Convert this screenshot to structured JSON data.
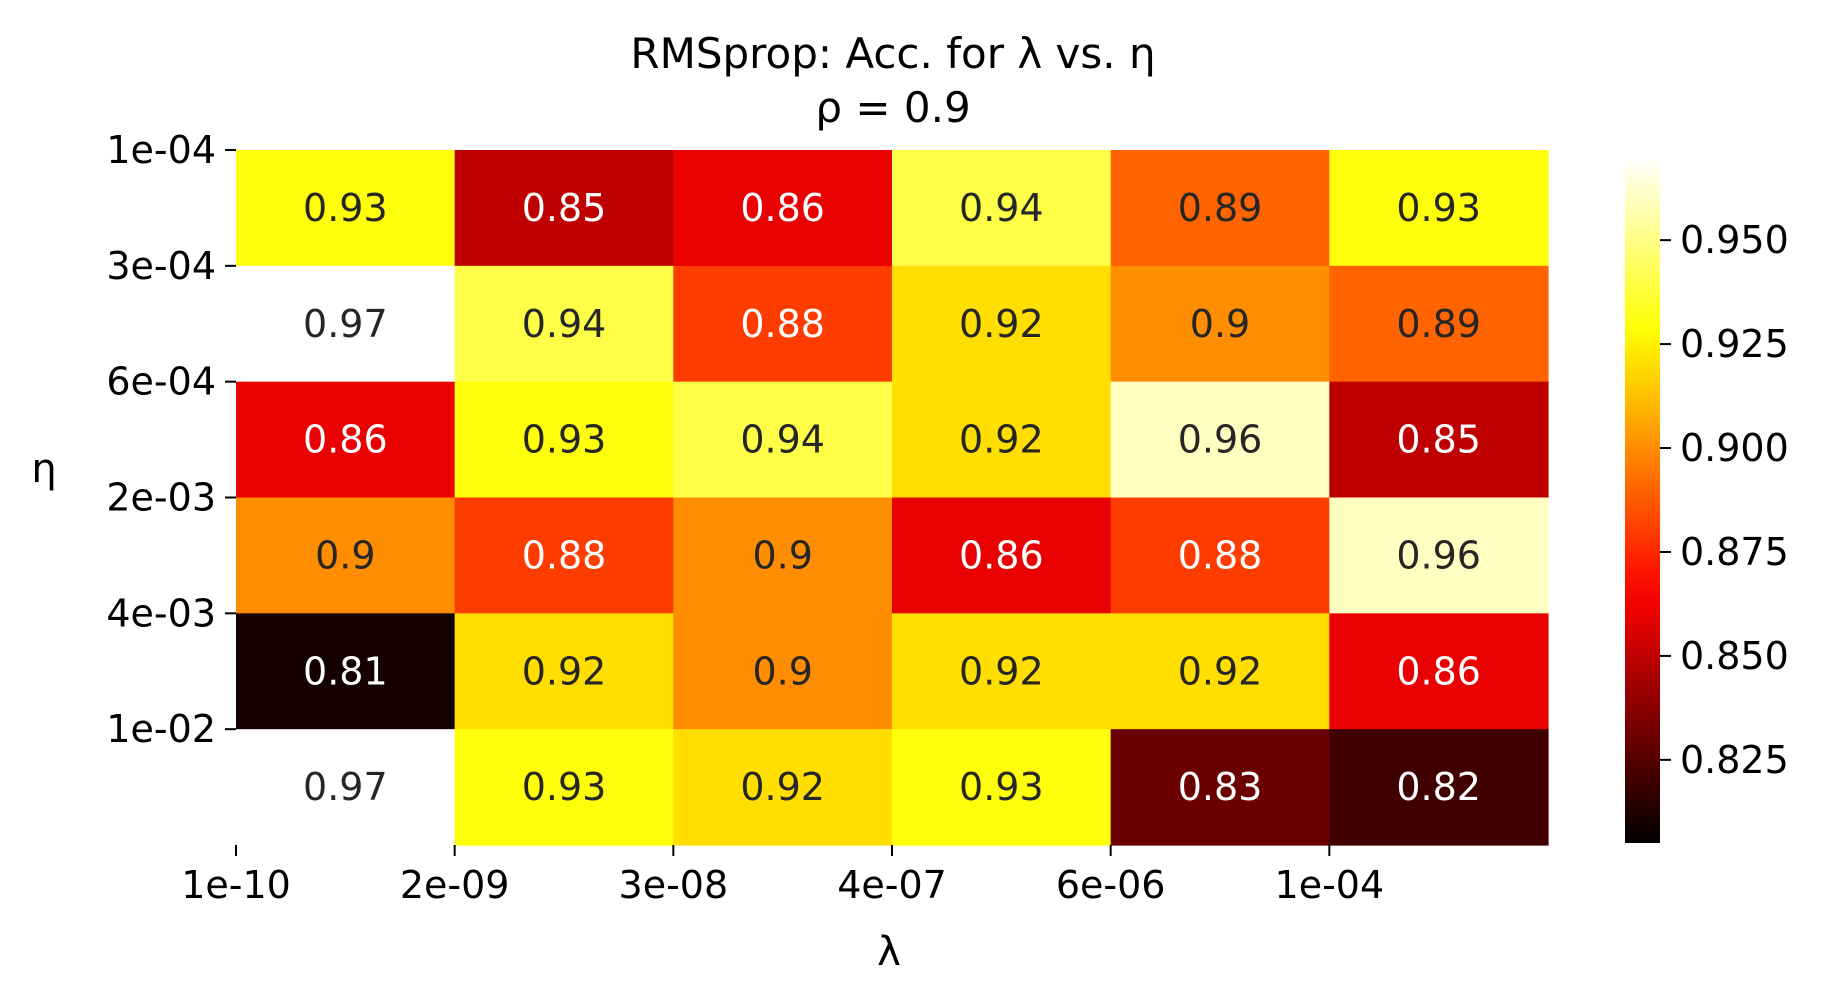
{
  "chart_data": {
    "type": "heatmap",
    "title": "RMSprop: Acc. for λ vs. η",
    "subtitle": "ρ = 0.9",
    "xlabel": "λ",
    "ylabel": "η",
    "x_tick_labels": [
      "1e-10",
      "2e-09",
      "3e-08",
      "4e-07",
      "6e-06",
      "1e-04"
    ],
    "y_tick_labels": [
      "1e-04",
      "3e-04",
      "6e-04",
      "2e-03",
      "4e-03",
      "1e-02"
    ],
    "values": [
      [
        0.93,
        0.85,
        0.86,
        0.94,
        0.89,
        0.93
      ],
      [
        0.97,
        0.94,
        0.88,
        0.92,
        0.9,
        0.89
      ],
      [
        0.86,
        0.93,
        0.94,
        0.92,
        0.96,
        0.85
      ],
      [
        0.9,
        0.88,
        0.9,
        0.86,
        0.88,
        0.96
      ],
      [
        0.81,
        0.92,
        0.9,
        0.92,
        0.92,
        0.86
      ],
      [
        0.97,
        0.93,
        0.92,
        0.93,
        0.83,
        0.82
      ]
    ],
    "cell_labels": [
      [
        "0.93",
        "0.85",
        "0.86",
        "0.94",
        "0.89",
        "0.93"
      ],
      [
        "0.97",
        "0.94",
        "0.88",
        "0.92",
        "0.9",
        "0.89"
      ],
      [
        "0.86",
        "0.93",
        "0.94",
        "0.92",
        "0.96",
        "0.85"
      ],
      [
        "0.9",
        "0.88",
        "0.9",
        "0.86",
        "0.88",
        "0.96"
      ],
      [
        "0.81",
        "0.92",
        "0.9",
        "0.92",
        "0.92",
        "0.86"
      ],
      [
        "0.97",
        "0.93",
        "0.92",
        "0.93",
        "0.83",
        "0.82"
      ]
    ],
    "colormap": "hot",
    "color_range": [
      0.805,
      0.97
    ],
    "colorbar_ticks": [
      0.825,
      0.85,
      0.875,
      0.9,
      0.925,
      0.95
    ],
    "colorbar_tick_labels": [
      "0.825",
      "0.850",
      "0.875",
      "0.900",
      "0.925",
      "0.950"
    ],
    "colorbar_placement": "right",
    "grid": false,
    "colors": {
      "text_dark": "#262626",
      "text_light": "#ffffff",
      "axis": "#000000"
    }
  }
}
